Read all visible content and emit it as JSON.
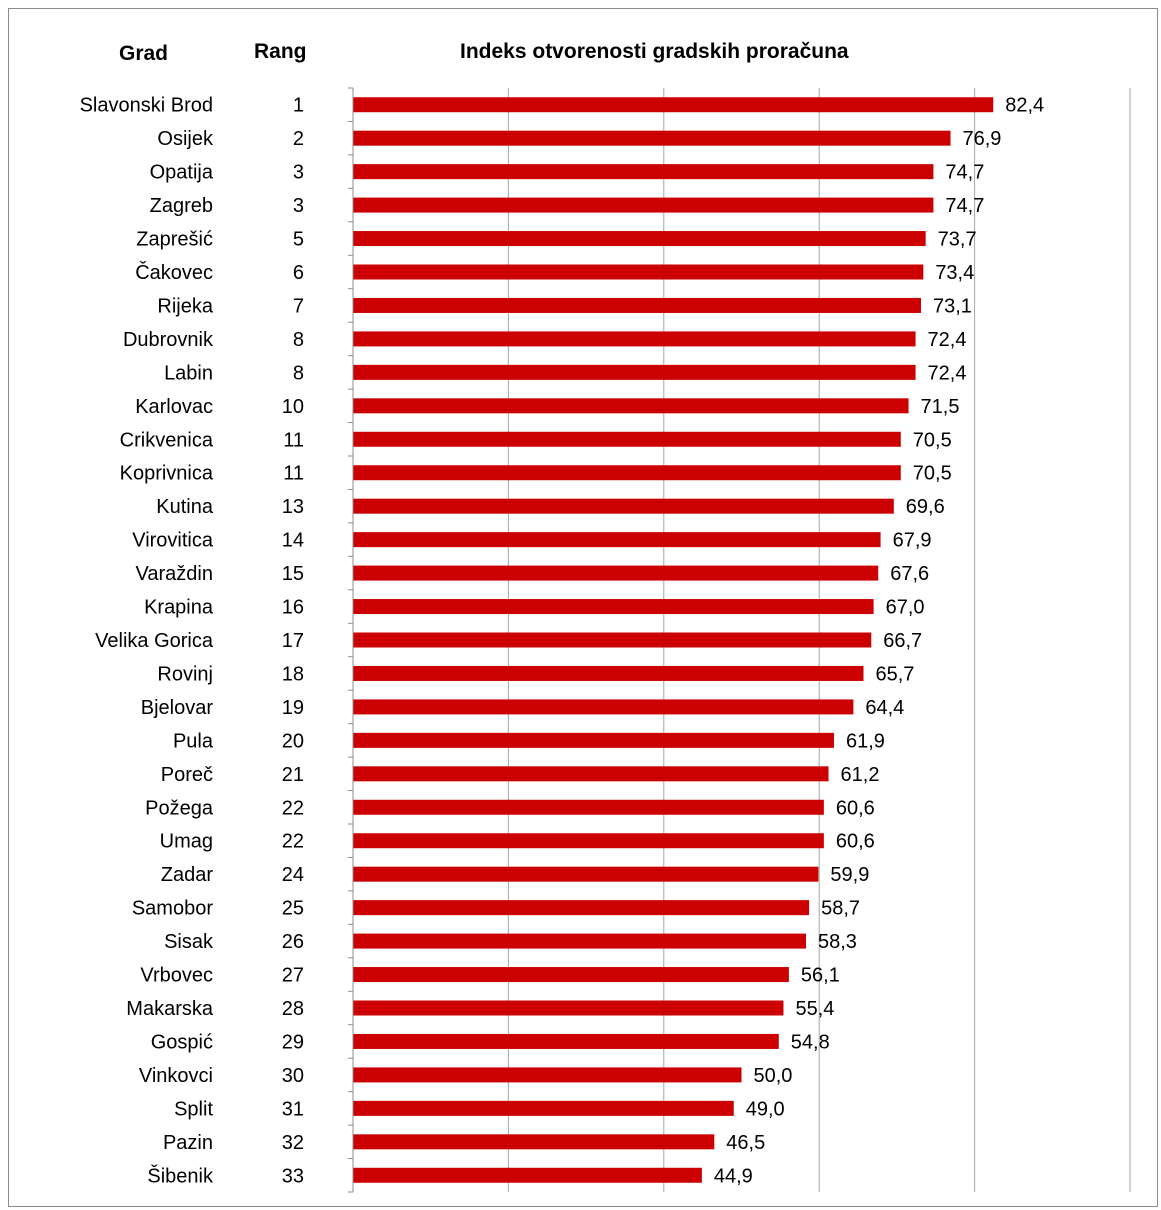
{
  "headers": {
    "city": "Grad",
    "rank": "Rang",
    "title": "Indeks otvorenosti gradskih proračuna"
  },
  "colors": {
    "bar": "#cc0000",
    "grid": "#a6a6a6",
    "axis": "#8c8c8c",
    "border": "#8c8c8c"
  },
  "chart_data": {
    "type": "bar",
    "orientation": "horizontal",
    "title": "Indeks otvorenosti gradskih proračuna",
    "xlim": [
      0,
      100
    ],
    "grid": true,
    "legend": "none",
    "categories": [
      {
        "city": "Slavonski Brod",
        "rank": "1",
        "value": 82.4,
        "label": "82,4"
      },
      {
        "city": "Osijek",
        "rank": "2",
        "value": 76.9,
        "label": "76,9"
      },
      {
        "city": "Opatija",
        "rank": "3",
        "value": 74.7,
        "label": "74,7"
      },
      {
        "city": "Zagreb",
        "rank": "3",
        "value": 74.7,
        "label": "74,7"
      },
      {
        "city": "Zaprešić",
        "rank": "5",
        "value": 73.7,
        "label": "73,7"
      },
      {
        "city": "Čakovec",
        "rank": "6",
        "value": 73.4,
        "label": "73,4"
      },
      {
        "city": "Rijeka",
        "rank": "7",
        "value": 73.1,
        "label": "73,1"
      },
      {
        "city": "Dubrovnik",
        "rank": "8",
        "value": 72.4,
        "label": "72,4"
      },
      {
        "city": "Labin",
        "rank": "8",
        "value": 72.4,
        "label": "72,4"
      },
      {
        "city": "Karlovac",
        "rank": "10",
        "value": 71.5,
        "label": "71,5"
      },
      {
        "city": "Crikvenica",
        "rank": "11",
        "value": 70.5,
        "label": "70,5"
      },
      {
        "city": "Koprivnica",
        "rank": "11",
        "value": 70.5,
        "label": "70,5"
      },
      {
        "city": "Kutina",
        "rank": "13",
        "value": 69.6,
        "label": "69,6"
      },
      {
        "city": "Virovitica",
        "rank": "14",
        "value": 67.9,
        "label": "67,9"
      },
      {
        "city": "Varaždin",
        "rank": "15",
        "value": 67.6,
        "label": "67,6"
      },
      {
        "city": "Krapina",
        "rank": "16",
        "value": 67.0,
        "label": "67,0"
      },
      {
        "city": "Velika Gorica",
        "rank": "17",
        "value": 66.7,
        "label": "66,7"
      },
      {
        "city": "Rovinj",
        "rank": "18",
        "value": 65.7,
        "label": "65,7"
      },
      {
        "city": "Bjelovar",
        "rank": "19",
        "value": 64.4,
        "label": "64,4"
      },
      {
        "city": "Pula",
        "rank": "20",
        "value": 61.9,
        "label": "61,9"
      },
      {
        "city": "Poreč",
        "rank": "21",
        "value": 61.2,
        "label": "61,2"
      },
      {
        "city": "Požega",
        "rank": "22",
        "value": 60.6,
        "label": "60,6"
      },
      {
        "city": "Umag",
        "rank": "22",
        "value": 60.6,
        "label": "60,6"
      },
      {
        "city": "Zadar",
        "rank": "24",
        "value": 59.9,
        "label": "59,9"
      },
      {
        "city": "Samobor",
        "rank": "25",
        "value": 58.7,
        "label": "58,7"
      },
      {
        "city": "Sisak",
        "rank": "26",
        "value": 58.3,
        "label": "58,3"
      },
      {
        "city": "Vrbovec",
        "rank": "27",
        "value": 56.1,
        "label": "56,1"
      },
      {
        "city": "Makarska",
        "rank": "28",
        "value": 55.4,
        "label": "55,4"
      },
      {
        "city": "Gospić",
        "rank": "29",
        "value": 54.8,
        "label": "54,8"
      },
      {
        "city": "Vinkovci",
        "rank": "30",
        "value": 50.0,
        "label": "50,0"
      },
      {
        "city": "Split",
        "rank": "31",
        "value": 49.0,
        "label": "49,0"
      },
      {
        "city": "Pazin",
        "rank": "32",
        "value": 46.5,
        "label": "46,5"
      },
      {
        "city": "Šibenik",
        "rank": "33",
        "value": 44.9,
        "label": "44,9"
      }
    ]
  }
}
